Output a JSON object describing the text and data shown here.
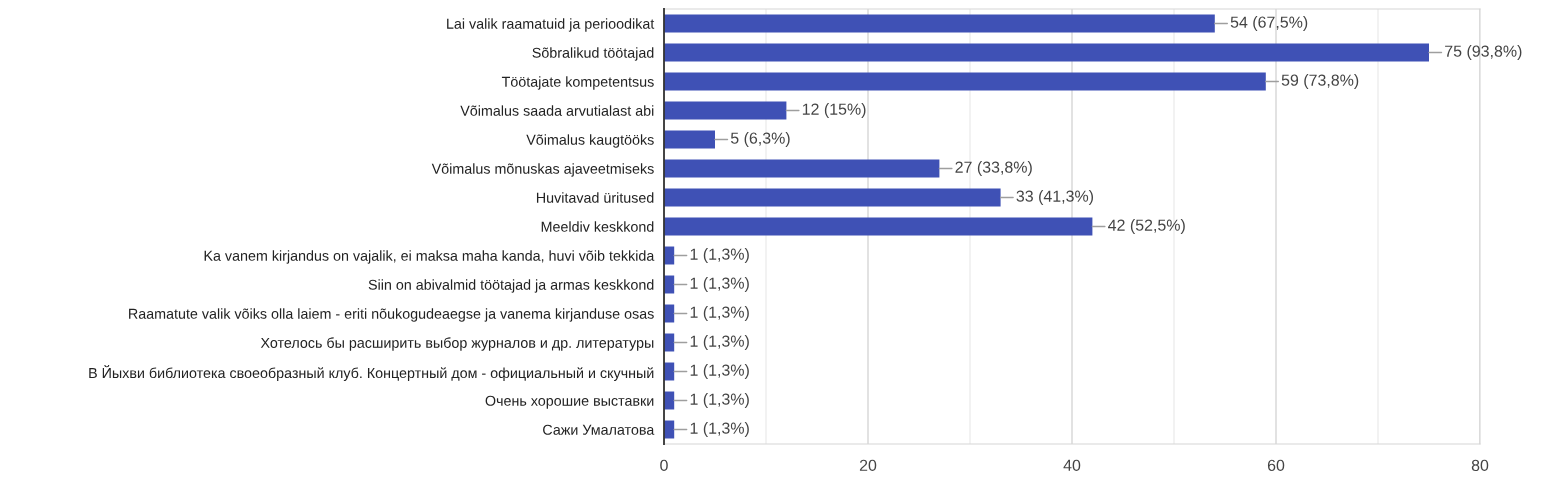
{
  "chart_data": {
    "type": "bar",
    "orientation": "horizontal",
    "categories": [
      "Lai valik raamatuid ja perioodikat",
      "Sõbralikud töötajad",
      "Töötajate kompetentsus",
      "Võimalus saada arvutialast abi",
      "Võimalus kaugtööks",
      "Võimalus mõnuskas ajaveetmiseks",
      "Huvitavad üritused",
      "Meeldiv keskkond",
      "Ka vanem kirjandus on vajalik, ei maksa maha kanda, huvi võib tekkida",
      "Siin on abivalmid töötajad ja armas keskkond",
      "Raamatute valik võiks olla laiem - eriti nõukogudeaegse ja vanema kirjanduse osas",
      "Хотелось бы расширить выбор журналов и др. литературы",
      "В Йыхви библиотека своеобразный клуб. Концертный дом - официальный и скучный",
      "Очень хорошие выставки",
      "Сажи Умалатова"
    ],
    "values": [
      54,
      75,
      59,
      12,
      5,
      27,
      33,
      42,
      1,
      1,
      1,
      1,
      1,
      1,
      1
    ],
    "value_labels": [
      "54 (67,5%)",
      "75 (93,8%)",
      "59 (73,8%)",
      "12 (15%)",
      "5 (6,3%)",
      "27 (33,8%)",
      "33 (41,3%)",
      "42 (52,5%)",
      "1 (1,3%)",
      "1 (1,3%)",
      "1 (1,3%)",
      "1 (1,3%)",
      "1 (1,3%)",
      "1 (1,3%)",
      "1 (1,3%)"
    ],
    "color": "#3f51b5",
    "xlim": [
      0,
      80
    ],
    "xticks": [
      0,
      {
        "value": 10,
        "label": null
      },
      20,
      {
        "value": 30,
        "label": null
      },
      40,
      {
        "value": 50,
        "label": null
      },
      60,
      {
        "value": 70,
        "label": null
      },
      80
    ],
    "grid": "x"
  }
}
